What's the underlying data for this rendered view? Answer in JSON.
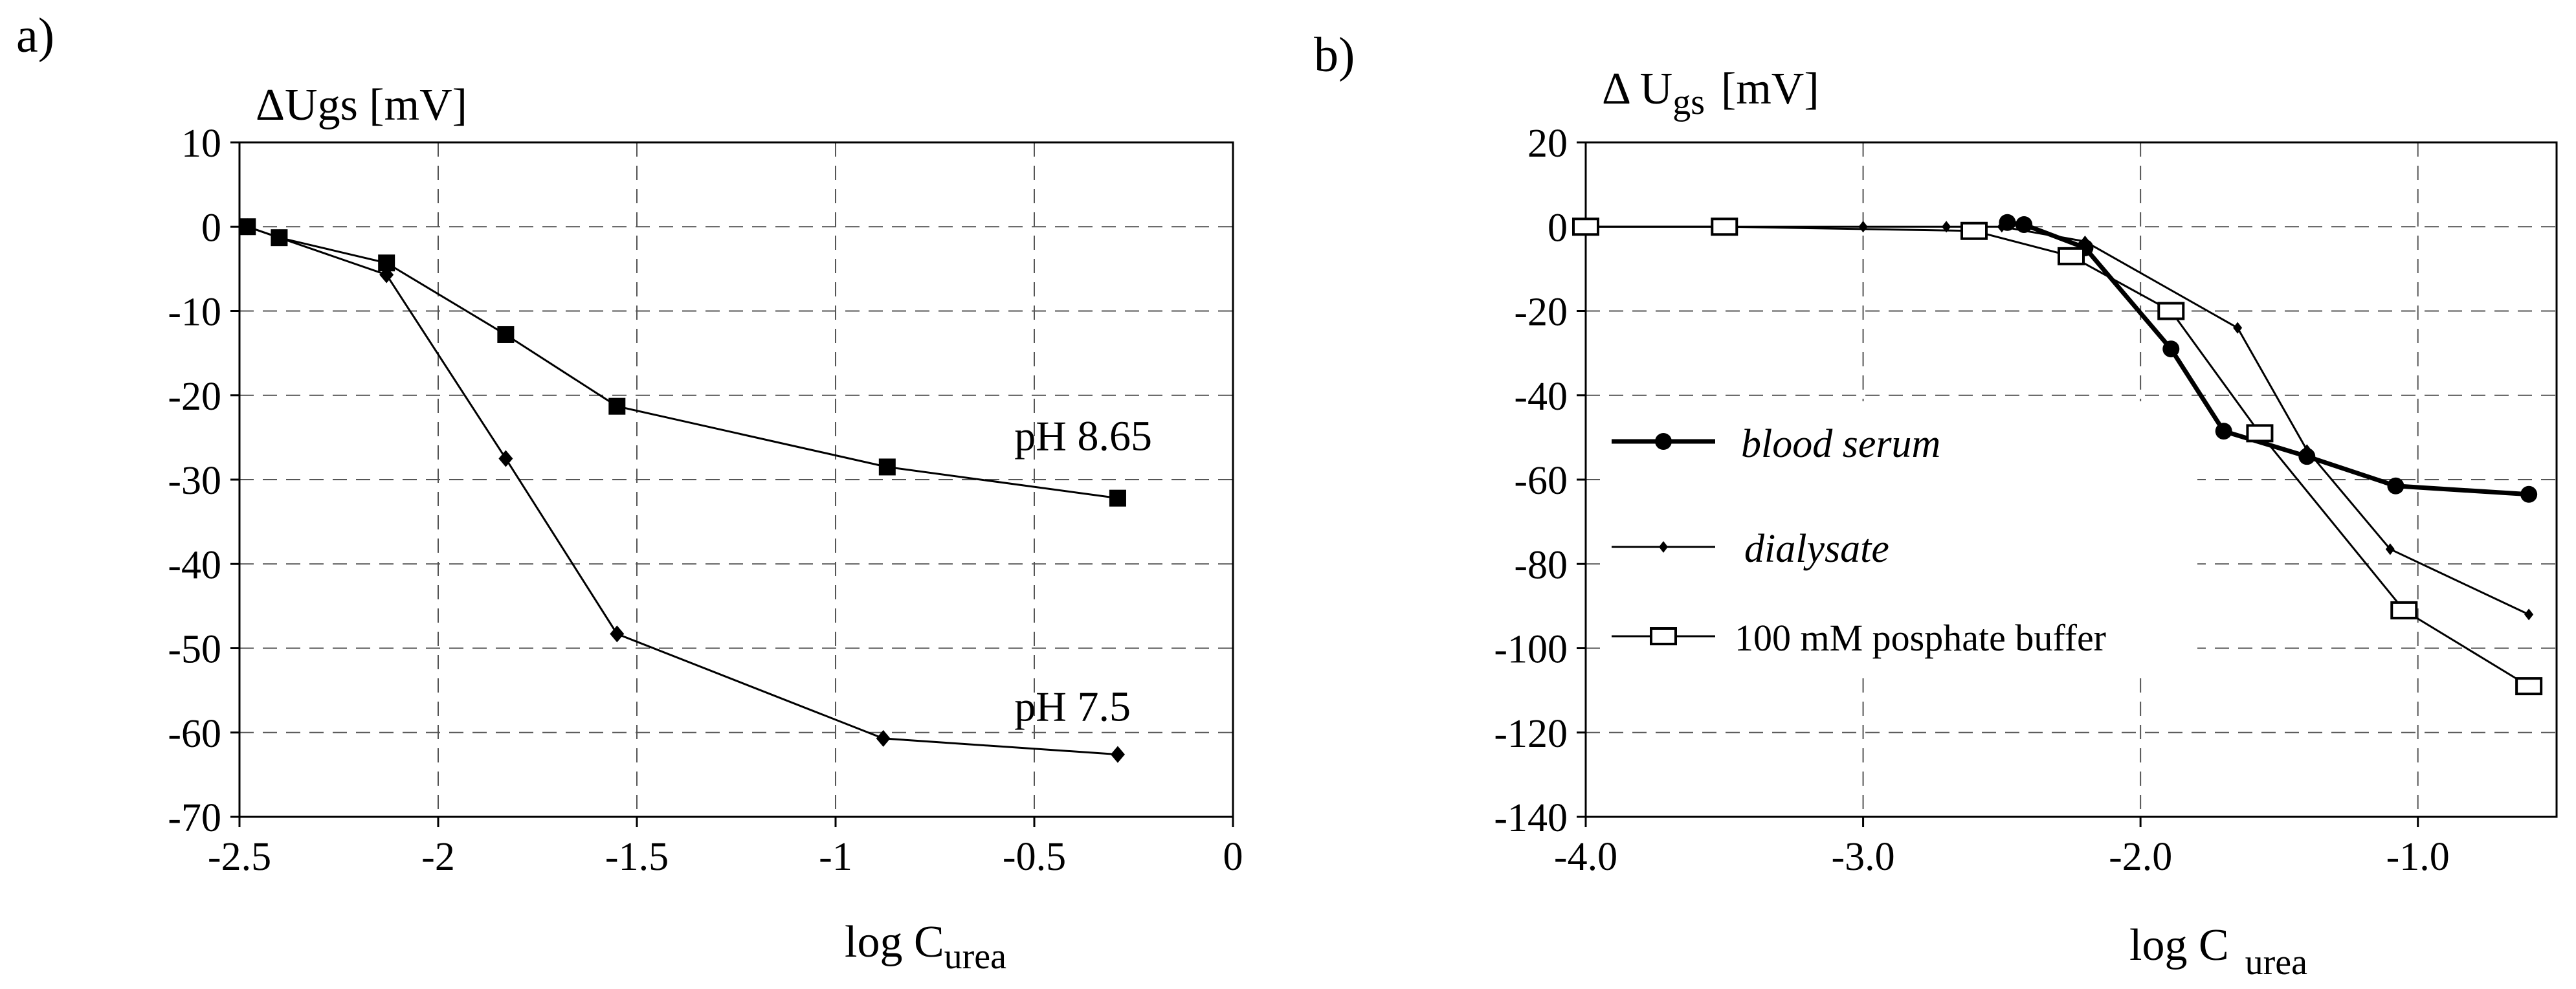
{
  "figure": {
    "panels": [
      {
        "label": "a)"
      },
      {
        "label": "b)"
      }
    ]
  },
  "chart_data": [
    {
      "type": "line",
      "panel_label": "a)",
      "ylabel": "ΔUgs [mV]",
      "xlabel_main": "log C",
      "xlabel_sub": "urea",
      "xlim": [
        -2.5,
        0
      ],
      "ylim": [
        -70,
        10
      ],
      "x_ticks": [
        -2.5,
        -2,
        -1.5,
        -1,
        -0.5,
        0
      ],
      "x_tick_labels": [
        "-2.5",
        "-2",
        "-1.5",
        "-1",
        "-0.5",
        "0"
      ],
      "y_ticks": [
        10,
        0,
        -10,
        -20,
        -30,
        -40,
        -50,
        -60,
        -70
      ],
      "y_tick_labels": [
        "10",
        "0",
        "-10",
        "-20",
        "-30",
        "-40",
        "-50",
        "-60",
        "-70"
      ],
      "grid": true,
      "series": [
        {
          "name": "pH 8.65",
          "marker": "square",
          "x": [
            -2.48,
            -2.4,
            -2.13,
            -1.83,
            -1.55,
            -0.87,
            -0.29
          ],
          "y": [
            0,
            -1.3,
            -4.3,
            -12.8,
            -21.3,
            -28.5,
            -32.2
          ]
        },
        {
          "name": "pH 7.5",
          "marker": "diamond",
          "x": [
            -2.48,
            -2.4,
            -2.13,
            -1.83,
            -1.55,
            -0.88,
            -0.29
          ],
          "y": [
            0,
            -1.3,
            -5.7,
            -27.5,
            -48.3,
            -60.7,
            -62.6
          ]
        }
      ],
      "annotations": [
        {
          "text": "pH 8.65",
          "x": -0.55,
          "y": -26.5
        },
        {
          "text": "pH 7.5",
          "x": -0.55,
          "y": -58.6
        }
      ]
    },
    {
      "type": "line",
      "panel_label": "b)",
      "ylabel_main": "Δ U",
      "ylabel_sub": "gs",
      "ylabel_unit": "[mV]",
      "xlabel_main": "log C",
      "xlabel_sub": "urea",
      "xlim": [
        -4.0,
        -0.5
      ],
      "ylim": [
        -140,
        20
      ],
      "x_ticks": [
        -4.0,
        -3.0,
        -2.0,
        -1.0
      ],
      "x_tick_labels": [
        "-4.0",
        "-3.0",
        "-2.0",
        "-1.0"
      ],
      "y_ticks": [
        20,
        0,
        -20,
        -40,
        -60,
        -80,
        -100,
        -120,
        -140
      ],
      "y_tick_labels": [
        "20",
        "0",
        "-20",
        "-40",
        "-60",
        "-80",
        "-100",
        "-120",
        "-140"
      ],
      "grid": true,
      "series": [
        {
          "name": "blood serum",
          "marker": "circle",
          "x": [
            -2.48,
            -2.42,
            -2.2,
            -1.89,
            -1.7,
            -1.4,
            -1.08,
            -0.6
          ],
          "y": [
            1,
            0.5,
            -5,
            -29,
            -48.5,
            -54.5,
            -61.5,
            -63.5
          ]
        },
        {
          "name": "dialysate",
          "marker": "small-diamond",
          "x": [
            -4.0,
            -3.5,
            -3.0,
            -2.7,
            -2.5,
            -2.2,
            -1.65,
            -1.4,
            -1.1,
            -0.6
          ],
          "y": [
            0,
            0,
            0,
            0,
            0,
            -3.5,
            -24,
            -53,
            -76.5,
            -92
          ]
        },
        {
          "name": "100 mM posphate buffer",
          "marker": "open-square",
          "x": [
            -4.0,
            -3.5,
            -2.6,
            -2.25,
            -1.89,
            -1.57,
            -1.05,
            -0.6
          ],
          "y": [
            0,
            0,
            -1,
            -7,
            -20,
            -49,
            -91,
            -109
          ]
        }
      ],
      "legend": {
        "position": "center-left",
        "entries": [
          "blood serum",
          "dialysate",
          "100 mM posphate buffer"
        ]
      }
    }
  ]
}
